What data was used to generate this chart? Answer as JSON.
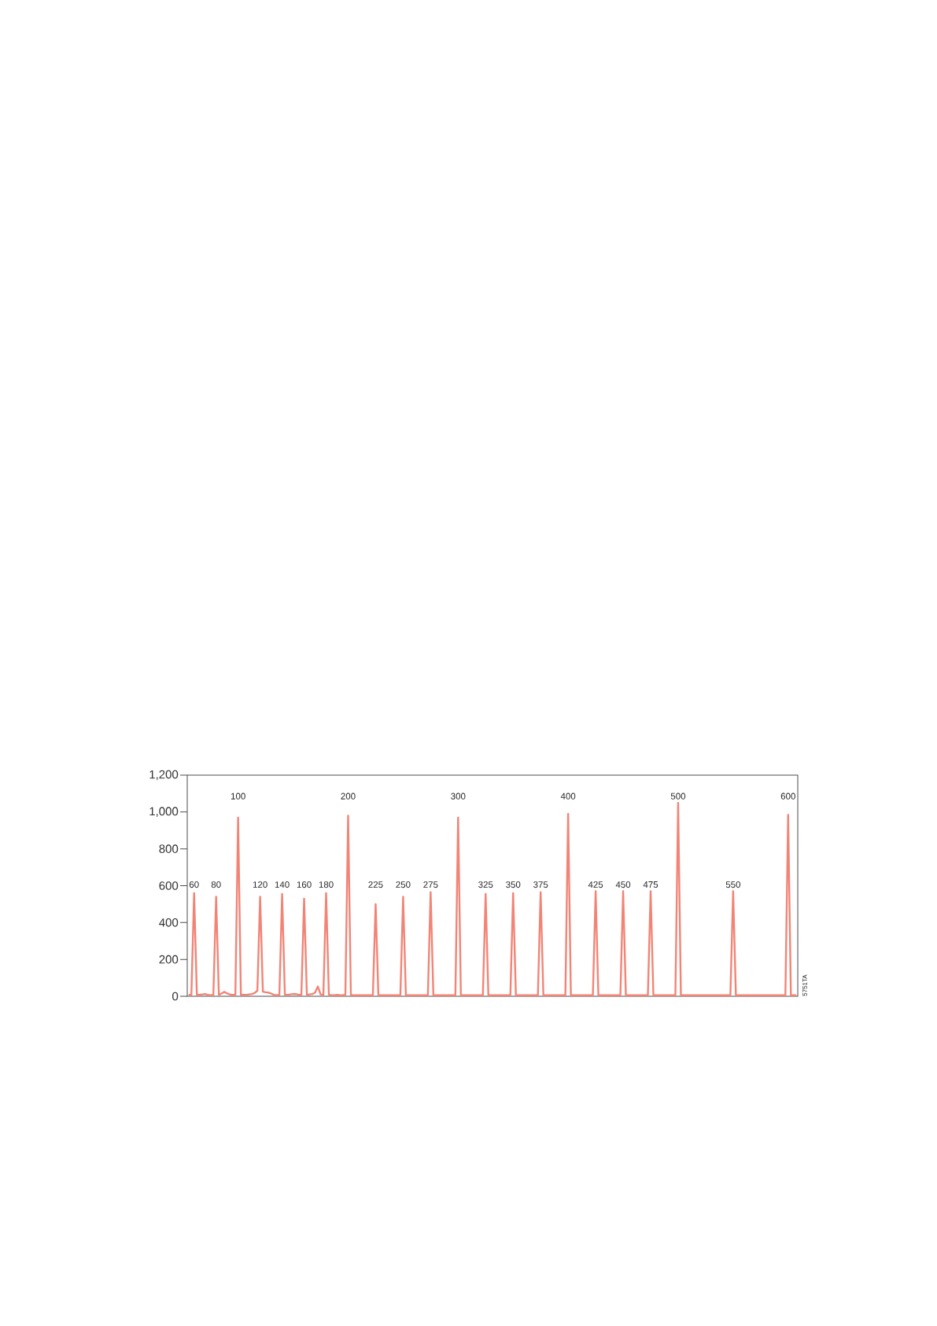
{
  "chart_data": {
    "type": "line",
    "categories": [
      null,
      null,
      "60",
      null,
      null,
      null,
      null,
      null,
      null,
      null,
      "80",
      null,
      null,
      null,
      null,
      null,
      null,
      null,
      "100",
      null,
      null,
      null,
      null,
      null,
      null,
      null,
      "120",
      null,
      null,
      null,
      null,
      null,
      null,
      null,
      "140",
      null,
      null,
      null,
      null,
      null,
      null,
      null,
      "160",
      null,
      null,
      null,
      null,
      null,
      null,
      null,
      "180",
      null,
      null,
      null,
      null,
      null,
      null,
      null,
      "200",
      null,
      null,
      null,
      null,
      null,
      null,
      null,
      null,
      null,
      "225",
      null,
      null,
      null,
      null,
      null,
      null,
      null,
      null,
      null,
      "250",
      null,
      null,
      null,
      null,
      null,
      null,
      null,
      null,
      null,
      "275",
      null,
      null,
      null,
      null,
      null,
      null,
      null,
      null,
      null,
      "300",
      null,
      null,
      null,
      null,
      null,
      null,
      null,
      null,
      null,
      "325",
      null,
      null,
      null,
      null,
      null,
      null,
      null,
      null,
      null,
      "350",
      null,
      null,
      null,
      null,
      null,
      null,
      null,
      null,
      null,
      "375",
      null,
      null,
      null,
      null,
      null,
      null,
      null,
      null,
      null,
      "400",
      null,
      null,
      null,
      null,
      null,
      null,
      null,
      null,
      null,
      "425",
      null,
      null,
      null,
      null,
      null,
      null,
      null,
      null,
      null,
      "450",
      null,
      null,
      null,
      null,
      null,
      null,
      null,
      null,
      null,
      "475",
      null,
      null,
      null,
      null,
      null,
      null,
      null,
      null,
      null,
      "500",
      null,
      null,
      null,
      null,
      null,
      null,
      null,
      null,
      null,
      null,
      null,
      null,
      null,
      null,
      null,
      null,
      null,
      null,
      null,
      "550",
      null,
      null,
      null,
      null,
      null,
      null,
      null,
      null,
      null,
      null,
      null,
      null,
      null,
      null,
      null,
      null,
      null,
      null,
      null,
      "600",
      null,
      null,
      null
    ],
    "series": [
      {
        "color": "#f28476",
        "values": [
          8,
          8,
          560,
          8,
          8,
          10,
          12,
          8,
          6,
          8,
          540,
          8,
          15,
          24,
          15,
          10,
          8,
          8,
          970,
          8,
          8,
          8,
          10,
          12,
          18,
          30,
          540,
          25,
          22,
          20,
          15,
          8,
          6,
          8,
          555,
          8,
          8,
          10,
          12,
          12,
          8,
          8,
          530,
          8,
          10,
          12,
          20,
          53,
          10,
          8,
          560,
          8,
          6,
          6,
          8,
          6,
          6,
          8,
          980,
          8,
          5,
          6,
          5,
          6,
          5,
          6,
          5,
          6,
          500,
          5,
          6,
          5,
          6,
          5,
          6,
          5,
          6,
          5,
          540,
          5,
          6,
          5,
          6,
          5,
          6,
          5,
          6,
          5,
          565,
          5,
          6,
          5,
          6,
          5,
          6,
          5,
          6,
          5,
          970,
          5,
          6,
          5,
          6,
          5,
          6,
          5,
          6,
          5,
          555,
          5,
          6,
          5,
          6,
          5,
          6,
          5,
          6,
          5,
          560,
          5,
          6,
          5,
          6,
          5,
          6,
          5,
          6,
          5,
          565,
          5,
          6,
          5,
          6,
          5,
          6,
          5,
          6,
          5,
          990,
          5,
          6,
          5,
          6,
          5,
          6,
          5,
          6,
          5,
          570,
          5,
          6,
          5,
          6,
          5,
          6,
          5,
          6,
          5,
          570,
          5,
          6,
          5,
          6,
          5,
          6,
          5,
          6,
          5,
          570,
          5,
          6,
          5,
          6,
          5,
          6,
          5,
          6,
          5,
          1050,
          5,
          6,
          5,
          6,
          5,
          6,
          5,
          6,
          5,
          6,
          5,
          6,
          5,
          6,
          5,
          6,
          5,
          6,
          5,
          570,
          5,
          6,
          5,
          6,
          5,
          6,
          5,
          6,
          5,
          6,
          5,
          6,
          5,
          6,
          5,
          6,
          5,
          6,
          5,
          985,
          5,
          6,
          5
        ]
      }
    ],
    "ylim": [
      0,
      1200
    ],
    "yticks": [
      0,
      200,
      400,
      600,
      800,
      {
        "value": 1000,
        "label": "1,000"
      },
      {
        "value": 1200,
        "label": "1,200"
      }
    ],
    "line_style": "solid",
    "annotations": [
      "5751TA"
    ]
  }
}
